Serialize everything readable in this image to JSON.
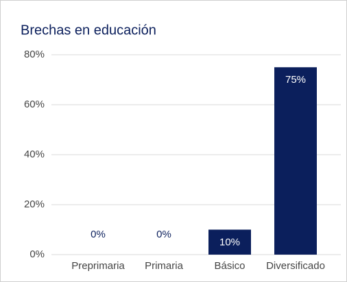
{
  "chart_data": {
    "type": "bar",
    "title": "Brechas en educación",
    "categories": [
      "Preprimaria",
      "Primaria",
      "Básico",
      "Diversificado"
    ],
    "values": [
      0,
      0,
      10,
      75
    ],
    "value_labels": [
      "0%",
      "0%",
      "10%",
      "75%"
    ],
    "color": "#0b1f5c",
    "ylim": [
      0,
      80
    ],
    "yticks": [
      {
        "value": 0,
        "label": "0%"
      },
      {
        "value": 20,
        "label": "20%"
      },
      {
        "value": 40,
        "label": "40%"
      },
      {
        "value": 60,
        "label": "60%"
      },
      {
        "value": 80,
        "label": "80%"
      }
    ],
    "grid": true
  }
}
